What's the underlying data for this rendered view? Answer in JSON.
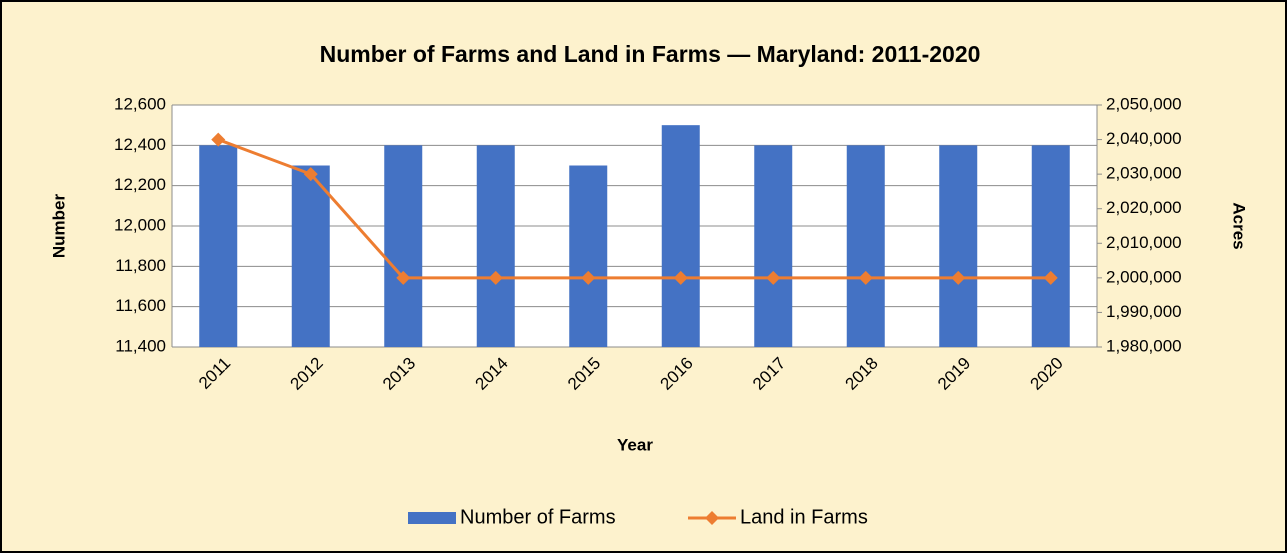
{
  "chart_data": {
    "type": "bar_line",
    "title": "Number of Farms and Land in Farms — Maryland: 2011-2020",
    "x_label": "Year",
    "y_label": "Number",
    "y2_label": "Acres",
    "categories": [
      "2011",
      "2012",
      "2013",
      "2014",
      "2015",
      "2016",
      "2017",
      "2018",
      "2019",
      "2020"
    ],
    "series": [
      {
        "name": "Number of Farms",
        "type": "bar",
        "color": "#4472c4",
        "values": [
          12400,
          12300,
          12400,
          12400,
          12300,
          12500,
          12400,
          12400,
          12400,
          12400
        ]
      },
      {
        "name": "Land in Farms",
        "type": "line",
        "axis": "y2",
        "color": "#ed7d31",
        "values": [
          2040000,
          2030000,
          2000000,
          2000000,
          2000000,
          2000000,
          2000000,
          2000000,
          2000000,
          2000000
        ]
      }
    ],
    "ylim": [
      11400,
      12600
    ],
    "yticks": [
      {
        "value": 11400,
        "label": "11,400"
      },
      {
        "value": 11600,
        "label": "11,600"
      },
      {
        "value": 11800,
        "label": "11,800"
      },
      {
        "value": 12000,
        "label": "12,000"
      },
      {
        "value": 12200,
        "label": "12,200"
      },
      {
        "value": 12400,
        "label": "12,400"
      },
      {
        "value": 12600,
        "label": "12,600"
      }
    ],
    "y2lim": [
      1980000,
      2050000
    ],
    "y2ticks": [
      {
        "value": 1980000,
        "label": "1,980,000"
      },
      {
        "value": 1990000,
        "label": "1,990,000"
      },
      {
        "value": 2000000,
        "label": "2,000,000"
      },
      {
        "value": 2010000,
        "label": "2,010,000"
      },
      {
        "value": 2020000,
        "label": "2,020,000"
      },
      {
        "value": 2030000,
        "label": "2,030,000"
      },
      {
        "value": 2040000,
        "label": "2,040,000"
      },
      {
        "value": 2050000,
        "label": "2,050,000"
      }
    ],
    "grid": true,
    "legend": "bottom"
  }
}
